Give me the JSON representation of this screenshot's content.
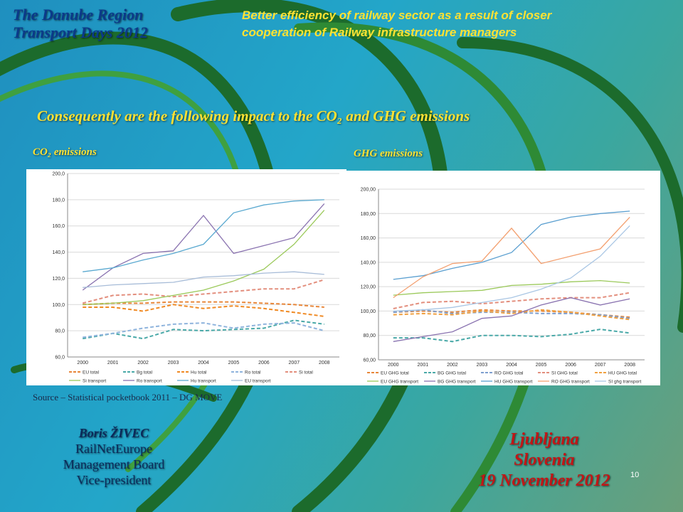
{
  "header": {
    "title": [
      "The Danube Region",
      "Transport Days 2012"
    ],
    "subtitle": [
      "Better efficiency of railway sector as a result of closer",
      "cooperation of Railway infrastructure managers"
    ]
  },
  "heading": "Consequently  are the following impact to the CO₂  and GHG emissions",
  "source": "Source – Statistical pocketbook 2011 – DG MOVE",
  "author": [
    "Boris ŽIVEC",
    "RailNetEurope",
    "Management Board",
    "Vice-president"
  ],
  "place": [
    "Ljubljana",
    "Slovenia",
    "19 November 2012"
  ],
  "page_number": "10",
  "chart_data": [
    {
      "type": "line",
      "title": "CO₂ emissions",
      "categories": [
        "2000",
        "2001",
        "2002",
        "2003",
        "2004",
        "2005",
        "2006",
        "2007",
        "2008"
      ],
      "ylim": [
        60,
        200
      ],
      "yticks": [
        {
          "value": 60,
          "label": "60,0"
        },
        {
          "value": 80,
          "label": "80,0"
        },
        {
          "value": 100,
          "label": "100,0"
        },
        {
          "value": 120,
          "label": "120,0"
        },
        {
          "value": 140,
          "label": "140,0"
        },
        {
          "value": 160,
          "label": "160,0"
        },
        {
          "value": 180,
          "label": "180,0"
        },
        {
          "value": 200,
          "label": "200,0"
        }
      ],
      "grid": true,
      "series": [
        {
          "name": "EU total",
          "color": "#e8873a",
          "dashed": true,
          "values": [
            100,
            101,
            101,
            102,
            102,
            102,
            101,
            100,
            98
          ]
        },
        {
          "name": "Bg total",
          "color": "#4aa9a8",
          "dashed": true,
          "values": [
            74,
            78,
            74,
            81,
            80,
            81,
            82,
            88,
            85
          ]
        },
        {
          "name": "Hu total",
          "color": "#f08a24",
          "dashed": true,
          "values": [
            98,
            98,
            95,
            100,
            97,
            99,
            97,
            94,
            91
          ]
        },
        {
          "name": "Ro total",
          "color": "#8fb4dd",
          "dashed": true,
          "values": [
            75,
            78,
            82,
            85,
            86,
            82,
            85,
            86,
            80
          ]
        },
        {
          "name": "Si total",
          "color": "#e38f7e",
          "dashed": true,
          "values": [
            101,
            107,
            108,
            106,
            108,
            110,
            112,
            112,
            119
          ]
        },
        {
          "name": "Si transport",
          "color": "#9bc95a",
          "dashed": false,
          "values": [
            100,
            101,
            103,
            107,
            111,
            118,
            127,
            146,
            172
          ]
        },
        {
          "name": "Ro transport",
          "color": "#8a73b0",
          "dashed": false,
          "values": [
            111,
            128,
            139,
            141,
            168,
            139,
            145,
            151,
            177
          ]
        },
        {
          "name": "Hu transport",
          "color": "#5aa9d0",
          "dashed": false,
          "values": [
            125,
            128,
            134,
            139,
            146,
            170,
            176,
            179,
            180
          ]
        },
        {
          "name": "EU transport",
          "color": "#a7bcd8",
          "dashed": false,
          "values": [
            113,
            115,
            116,
            117,
            121,
            122,
            124,
            125,
            123
          ]
        }
      ]
    },
    {
      "type": "line",
      "title": "GHG emissions",
      "categories": [
        "2000",
        "2001",
        "2002",
        "2003",
        "2004",
        "2005",
        "2006",
        "2007",
        "2008"
      ],
      "ylim": [
        60,
        200
      ],
      "yticks": [
        {
          "value": 60,
          "label": "60,00"
        },
        {
          "value": 80,
          "label": "80,00"
        },
        {
          "value": 100,
          "label": "100,00"
        },
        {
          "value": 120,
          "label": "120,00"
        },
        {
          "value": 140,
          "label": "140,00"
        },
        {
          "value": 160,
          "label": "160,00"
        },
        {
          "value": 180,
          "label": "180,00"
        },
        {
          "value": 200,
          "label": "200,00"
        }
      ],
      "grid": true,
      "series": [
        {
          "name": "EU GHG total",
          "color": "#e8873a",
          "dashed": true,
          "values": [
            99,
            100,
            99,
            101,
            100,
            100,
            99,
            97,
            95
          ]
        },
        {
          "name": "BG GHG total",
          "color": "#4aa9a8",
          "dashed": true,
          "values": [
            78,
            78,
            75,
            80,
            80,
            79,
            81,
            85,
            82
          ]
        },
        {
          "name": "RO GHG total",
          "color": "#7e9fcf",
          "dashed": true,
          "values": [
            99,
            101,
            98,
            99,
            99,
            98,
            98,
            97,
            94
          ]
        },
        {
          "name": "SI GHG total",
          "color": "#e38f7e",
          "dashed": true,
          "values": [
            102,
            107,
            108,
            106,
            108,
            110,
            111,
            111,
            115
          ]
        },
        {
          "name": "HU GHG total",
          "color": "#f0a040",
          "dashed": true,
          "values": [
            97,
            98,
            97,
            100,
            98,
            101,
            99,
            96,
            93
          ]
        },
        {
          "name": "EU GHG transport",
          "color": "#9bc95a",
          "dashed": false,
          "values": [
            113,
            115,
            116,
            117,
            121,
            122,
            124,
            125,
            123
          ]
        },
        {
          "name": "BG GHG transport",
          "color": "#8a73b0",
          "dashed": false,
          "values": [
            75,
            79,
            83,
            94,
            96,
            105,
            111,
            105,
            110
          ]
        },
        {
          "name": "HU GHG transport",
          "color": "#5a9fd0",
          "dashed": false,
          "values": [
            126,
            129,
            135,
            140,
            148,
            171,
            177,
            180,
            182
          ]
        },
        {
          "name": "RO GHG transport",
          "color": "#f3a070",
          "dashed": false,
          "values": [
            111,
            128,
            139,
            141,
            168,
            139,
            145,
            151,
            177
          ]
        },
        {
          "name": "SI ghg transport",
          "color": "#a9c6e4",
          "dashed": false,
          "values": [
            100,
            101,
            103,
            107,
            111,
            118,
            127,
            145,
            170
          ]
        }
      ]
    }
  ]
}
